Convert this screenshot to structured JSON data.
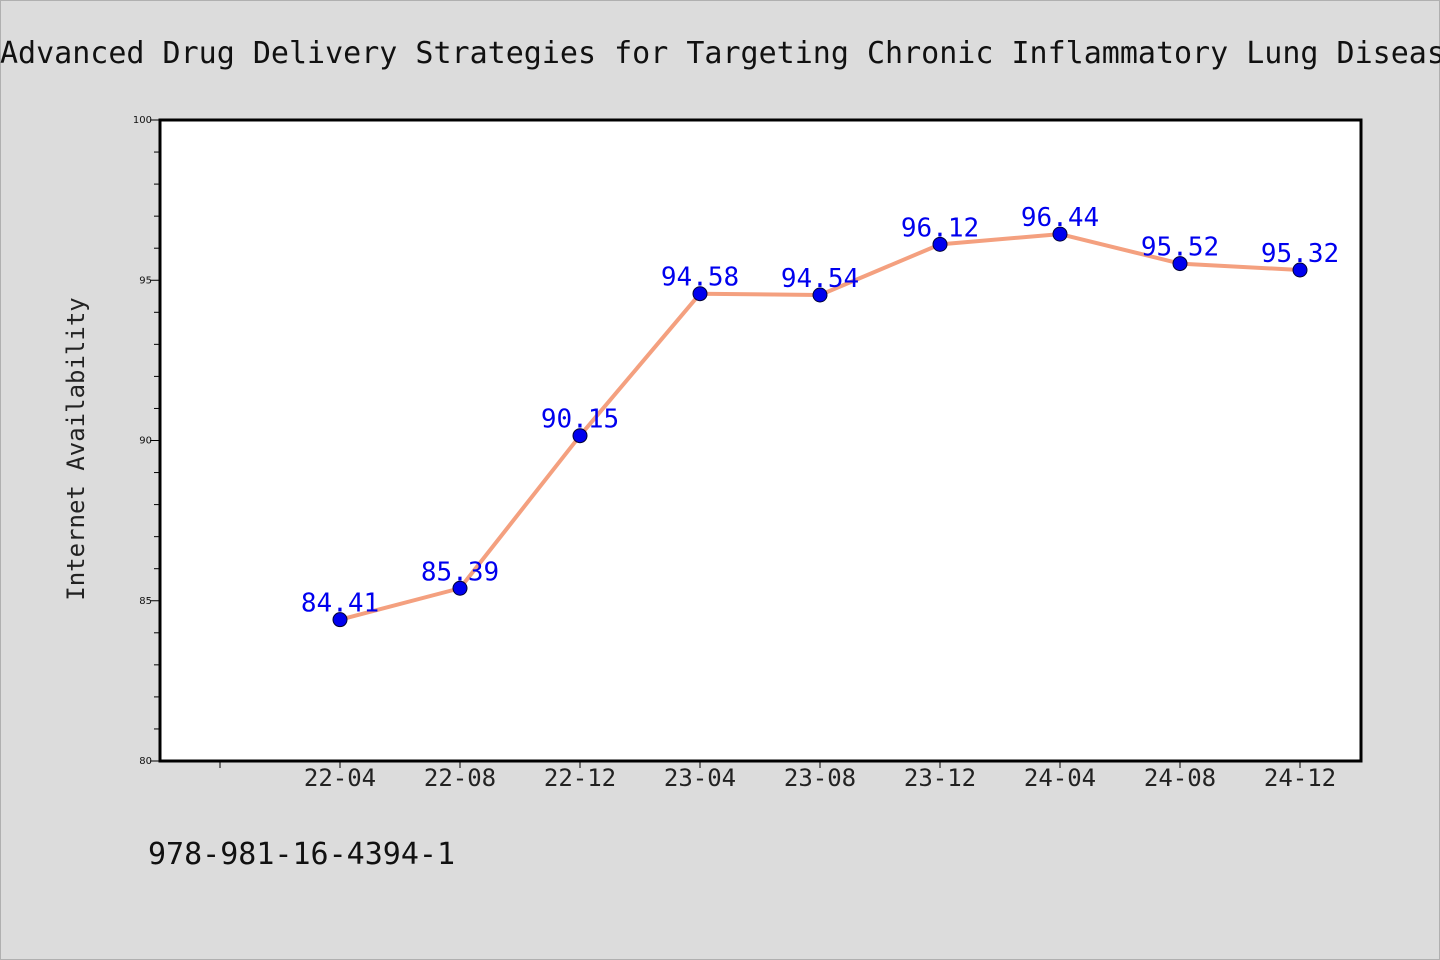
{
  "chart_data": {
    "type": "line",
    "title": "Advanced Drug Delivery Strategies for Targeting Chronic Inflammatory Lung Diseas",
    "xlabel": "",
    "ylabel": "Internet Availability",
    "categories": [
      "22-04",
      "22-08",
      "22-12",
      "23-04",
      "23-08",
      "23-12",
      "24-04",
      "24-08",
      "24-12"
    ],
    "series": [
      {
        "values": [
          84.41,
          85.39,
          90.15,
          94.58,
          94.54,
          96.12,
          96.44,
          95.52,
          95.32
        ],
        "data_labels": [
          "84.41",
          "85.39",
          "90.15",
          "94.58",
          "94.54",
          "96.12",
          "96.44",
          "95.52",
          "95.32"
        ]
      }
    ],
    "ylim": [
      80,
      100
    ],
    "yticks": [
      "80",
      "85",
      "90",
      "95",
      "100"
    ],
    "grid": false,
    "line_color": "#f4a07f",
    "marker_color": "#0000ee",
    "label_color": "#0000ee"
  },
  "footer": {
    "text": "978-981-16-4394-1"
  }
}
